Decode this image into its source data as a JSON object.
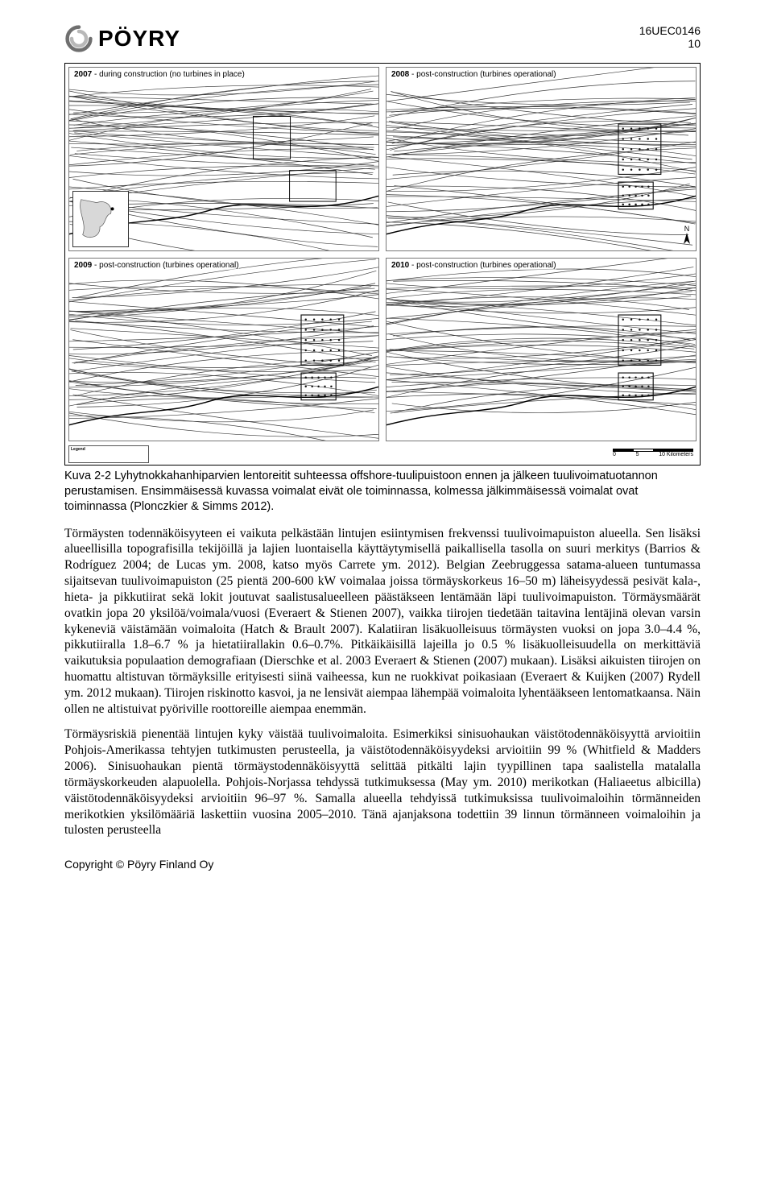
{
  "header": {
    "logo_text": "PÖYRY",
    "doc_code": "16UEC0146",
    "page_num": "10"
  },
  "figure": {
    "panels": [
      {
        "year": "2007",
        "desc": "- during construction (no turbines in place)",
        "has_turbines": false,
        "has_inset": true
      },
      {
        "year": "2008",
        "desc": "- post-construction (turbines operational)",
        "has_turbines": true,
        "has_inset": false
      },
      {
        "year": "2009",
        "desc": "- post-construction (turbines operational)",
        "has_turbines": true,
        "has_inset": false
      },
      {
        "year": "2010",
        "desc": "- post-construction (turbines operational)",
        "has_turbines": true,
        "has_inset": false
      }
    ],
    "legend_title": "Legend",
    "scale_labels": [
      "0",
      "5",
      "10 Kilometers"
    ],
    "sketch": {
      "line_color": "#3a3a3a",
      "line_width": 0.7,
      "n_tracks": 55,
      "turbine_box_color": "#111111",
      "inset_fill": "#d8d8d8",
      "coastline_color": "#000000"
    }
  },
  "caption": "Kuva 2-2 Lyhytnokkahanhiparvien lentoreitit suhteessa offshore-tuulipuistoon ennen ja jälkeen tuulivoimatuotannon perustamisen. Ensimmäisessä kuvassa voimalat eivät ole toiminnassa, kolmessa jälkimmäisessä voimalat ovat toiminnassa (Plonczkier & Simms 2012).",
  "paragraphs": [
    "Törmäysten todennäköisyyteen ei vaikuta pelkästään lintujen esiintymisen frekvenssi tuulivoimapuiston alueella. Sen lisäksi alueellisilla topografisilla tekijöillä ja lajien luontaisella käyttäytymisellä paikallisella tasolla on suuri merkitys (Barrios & Rodríguez 2004; de Lucas ym. 2008, katso myös Carrete ym. 2012). Belgian Zeebruggessa satama-alueen tuntumassa sijaitsevan tuulivoimapuiston (25 pientä 200-600 kW voimalaa joissa törmäyskorkeus 16–50 m) läheisyydessä pesivät kala-, hieta- ja pikkutiirat sekä lokit joutuvat saalistusalueelleen päästäkseen lentämään läpi tuulivoimapuiston. Törmäysmäärät ovatkin jopa 20 yksilöä/voimala/vuosi (Everaert & Stienen 2007), vaikka tiirojen tiedetään taitavina lentäjinä olevan varsin kykeneviä väistämään voimaloita (Hatch & Brault 2007). Kalatiiran lisäkuolleisuus törmäysten vuoksi on jopa 3.0–4.4 %, pikkutiiralla 1.8–6.7 % ja hietatiirallakin 0.6–0.7%. Pitkäikäisillä lajeilla jo 0.5 % lisäkuolleisuudella on merkittäviä vaikutuksia populaation demografiaan (Dierschke et al. 2003 Everaert & Stienen (2007) mukaan). Lisäksi aikuisten tiirojen on huomattu altistuvan törmäyksille erityisesti siinä vaiheessa, kun ne ruokkivat poikasiaan (Everaert & Kuijken (2007) Rydell ym. 2012 mukaan). Tiirojen riskinotto kasvoi, ja ne lensivät aiempaa lähempää voimaloita lyhentääkseen lentomatkaansa. Näin ollen ne altistuivat pyöriville roottoreille aiempaa enemmän.",
    "Törmäysriskiä pienentää lintujen kyky väistää tuulivoimaloita. Esimerkiksi sinisuohaukan väistötodennäköisyyttä arvioitiin Pohjois-Amerikassa tehtyjen tutkimusten perusteella, ja väistötodennäköisyydeksi arvioitiin 99 % (Whitfield & Madders 2006). Sinisuohaukan pientä törmäystodennäköisyyttä selittää pitkälti lajin tyypillinen tapa saalistella matalalla törmäyskorkeuden alapuolella. Pohjois-Norjassa tehdyssä tutkimuksessa (May ym. 2010) merikotkan (Haliaeetus albicilla) väistötodennäköisyydeksi arvioitiin 96–97 %. Samalla alueella tehdyissä tutkimuksissa tuulivoimaloihin törmänneiden merikotkien yksilömääriä laskettiin vuosina 2005–2010. Tänä ajanjaksona todettiin 39 linnun törmänneen voimaloihin ja tulosten perusteella"
  ],
  "footer": "Copyright © Pöyry Finland Oy"
}
